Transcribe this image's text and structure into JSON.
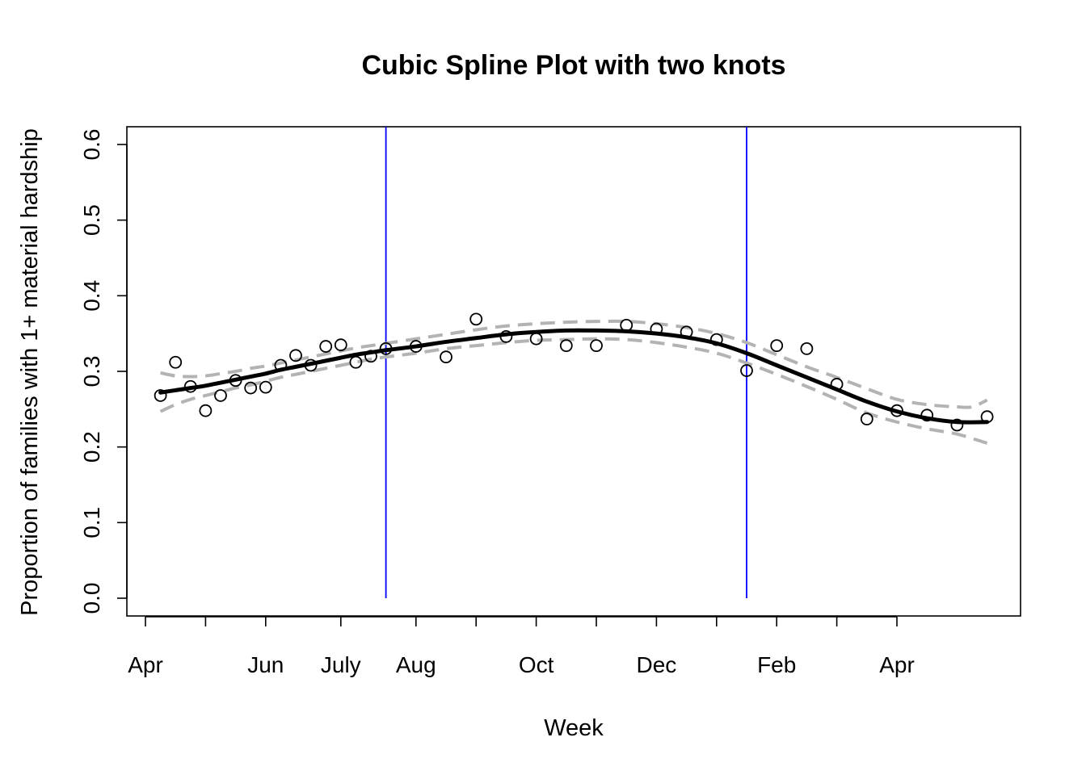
{
  "chart_data": {
    "type": "scatter",
    "title": "Cubic Spline Plot with two knots",
    "xlabel": "Week",
    "ylabel": "Proportion of families with 1+ material hardship",
    "ylim": [
      0,
      0.6
    ],
    "yticks": [
      0.0,
      0.1,
      0.2,
      0.3,
      0.4,
      0.5,
      0.6
    ],
    "ytick_labels": [
      "0.0",
      "0.1",
      "0.2",
      "0.3",
      "0.4",
      "0.5",
      "0.6"
    ],
    "xlim": [
      1,
      57
    ],
    "xticks": [
      1,
      5,
      9,
      14,
      19,
      23,
      27,
      31,
      35,
      39,
      43,
      47,
      51
    ],
    "xtick_labels": [
      {
        "x": 1,
        "label": "Apr"
      },
      {
        "x": 9,
        "label": "Jun"
      },
      {
        "x": 14,
        "label": "July"
      },
      {
        "x": 19,
        "label": "Aug"
      },
      {
        "x": 27,
        "label": "Oct"
      },
      {
        "x": 35,
        "label": "Dec"
      },
      {
        "x": 43,
        "label": "Feb"
      },
      {
        "x": 51,
        "label": "Apr"
      }
    ],
    "knots": [
      17,
      41
    ],
    "knot_color": "#0000ff",
    "grid": false,
    "points": [
      {
        "x": 2,
        "y": 0.268
      },
      {
        "x": 3,
        "y": 0.312
      },
      {
        "x": 4,
        "y": 0.28
      },
      {
        "x": 5,
        "y": 0.248
      },
      {
        "x": 6,
        "y": 0.268
      },
      {
        "x": 7,
        "y": 0.288
      },
      {
        "x": 8,
        "y": 0.278
      },
      {
        "x": 9,
        "y": 0.279
      },
      {
        "x": 10,
        "y": 0.308
      },
      {
        "x": 11,
        "y": 0.321
      },
      {
        "x": 12,
        "y": 0.308
      },
      {
        "x": 13,
        "y": 0.333
      },
      {
        "x": 14,
        "y": 0.335
      },
      {
        "x": 15,
        "y": 0.312
      },
      {
        "x": 16,
        "y": 0.32
      },
      {
        "x": 17,
        "y": 0.33
      },
      {
        "x": 19,
        "y": 0.333
      },
      {
        "x": 21,
        "y": 0.319
      },
      {
        "x": 23,
        "y": 0.369
      },
      {
        "x": 25,
        "y": 0.346
      },
      {
        "x": 27,
        "y": 0.343
      },
      {
        "x": 29,
        "y": 0.334
      },
      {
        "x": 31,
        "y": 0.334
      },
      {
        "x": 33,
        "y": 0.361
      },
      {
        "x": 35,
        "y": 0.356
      },
      {
        "x": 37,
        "y": 0.352
      },
      {
        "x": 39,
        "y": 0.342
      },
      {
        "x": 41,
        "y": 0.301
      },
      {
        "x": 43,
        "y": 0.334
      },
      {
        "x": 45,
        "y": 0.33
      },
      {
        "x": 47,
        "y": 0.283
      },
      {
        "x": 49,
        "y": 0.237
      },
      {
        "x": 51,
        "y": 0.248
      },
      {
        "x": 53,
        "y": 0.242
      },
      {
        "x": 55,
        "y": 0.229
      },
      {
        "x": 57,
        "y": 0.24
      }
    ],
    "fit": {
      "x": [
        2,
        3,
        4,
        5,
        6,
        7,
        8,
        9,
        10,
        11,
        12,
        13,
        14,
        15,
        16,
        17,
        19,
        21,
        23,
        25,
        27,
        29,
        31,
        33,
        35,
        37,
        39,
        41,
        43,
        45,
        47,
        49,
        51,
        53,
        55,
        57
      ],
      "y": [
        0.272,
        0.275,
        0.278,
        0.281,
        0.285,
        0.289,
        0.293,
        0.297,
        0.302,
        0.306,
        0.31,
        0.314,
        0.318,
        0.322,
        0.325,
        0.328,
        0.333,
        0.339,
        0.344,
        0.349,
        0.352,
        0.354,
        0.354,
        0.353,
        0.35,
        0.345,
        0.337,
        0.324,
        0.308,
        0.292,
        0.276,
        0.26,
        0.247,
        0.238,
        0.233,
        0.233
      ],
      "color": "#000000"
    },
    "upper": {
      "x": [
        2,
        3,
        4,
        5,
        6,
        7,
        8,
        9,
        10,
        11,
        12,
        13,
        14,
        15,
        16,
        17,
        19,
        21,
        23,
        25,
        27,
        29,
        31,
        33,
        35,
        37,
        39,
        41,
        43,
        45,
        47,
        49,
        51,
        53,
        55,
        56,
        57
      ],
      "y": [
        0.298,
        0.294,
        0.293,
        0.294,
        0.297,
        0.3,
        0.304,
        0.307,
        0.311,
        0.315,
        0.319,
        0.323,
        0.327,
        0.331,
        0.334,
        0.337,
        0.343,
        0.349,
        0.355,
        0.36,
        0.363,
        0.365,
        0.366,
        0.366,
        0.363,
        0.358,
        0.35,
        0.338,
        0.322,
        0.306,
        0.292,
        0.277,
        0.263,
        0.256,
        0.253,
        0.253,
        0.262
      ],
      "color": "#b3b3b3"
    },
    "lower": {
      "x": [
        2,
        3,
        4,
        5,
        6,
        7,
        8,
        9,
        10,
        11,
        12,
        13,
        14,
        15,
        16,
        17,
        19,
        21,
        23,
        25,
        27,
        29,
        31,
        33,
        35,
        37,
        39,
        41,
        43,
        45,
        47,
        49,
        51,
        53,
        55,
        57
      ],
      "y": [
        0.247,
        0.256,
        0.263,
        0.268,
        0.273,
        0.278,
        0.282,
        0.287,
        0.292,
        0.296,
        0.3,
        0.304,
        0.308,
        0.312,
        0.316,
        0.319,
        0.324,
        0.33,
        0.334,
        0.338,
        0.341,
        0.342,
        0.343,
        0.342,
        0.338,
        0.332,
        0.324,
        0.311,
        0.296,
        0.28,
        0.263,
        0.245,
        0.233,
        0.224,
        0.217,
        0.205
      ],
      "color": "#b3b3b3"
    }
  }
}
